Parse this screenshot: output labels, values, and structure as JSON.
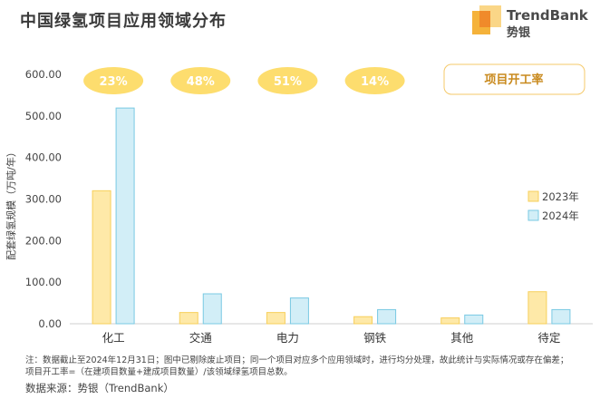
{
  "title": "中国绿氢项目应用领域分布",
  "logo": {
    "brand": "TrendBank",
    "brand_cn": "势银"
  },
  "chart_data": {
    "type": "bar",
    "categories": [
      "化工",
      "交通",
      "电力",
      "钢铁",
      "其他",
      "待定"
    ],
    "series": [
      {
        "name": "2023年",
        "values": [
          320,
          27,
          27,
          17,
          14,
          77
        ],
        "color": "#FEE9A8",
        "stroke": "#F7CF5A"
      },
      {
        "name": "2024年",
        "values": [
          519,
          72,
          62,
          34,
          21,
          34
        ],
        "color": "#D2EEF7",
        "stroke": "#79C9E3"
      }
    ],
    "rate_label": "项目开工率",
    "rates": [
      "23%",
      "48%",
      "51%",
      "14%"
    ],
    "ylabel": "配套绿氢规模（万吨/年）",
    "ylim": [
      0,
      600
    ],
    "yticks": [
      "0.00",
      "100.00",
      "200.00",
      "300.00",
      "400.00",
      "500.00",
      "600.00"
    ],
    "ytick_values": [
      0,
      100,
      200,
      300,
      400,
      500,
      600
    ],
    "legend_position": "right",
    "grid": false,
    "colors": {
      "rate_bubble": "#FDDD6E",
      "rate_box_border": "#F5C96A",
      "rate_text": "#C98A1E"
    }
  },
  "notes": {
    "line1": "注：数据截止至2024年12月31日；图中已剔除废止项目；同一个项目对应多个应用领域时，进行均分处理，故此统计与实际情况或存在偏差；",
    "line2": "项目开工率=（在建项目数量+建成项目数量）/该领域绿氢项目总数。",
    "source": "数据来源：势银（TrendBank）"
  }
}
